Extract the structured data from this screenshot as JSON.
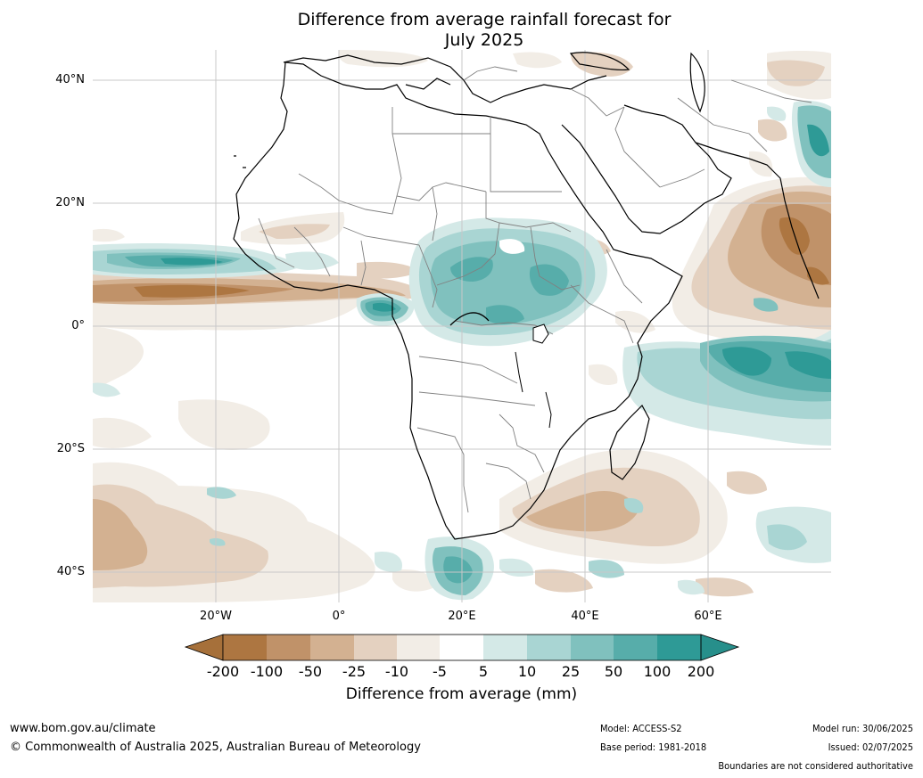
{
  "title_line1": "Difference from average rainfall forecast for",
  "title_line2": "July 2025",
  "lat_labels": [
    "40°N",
    "20°N",
    "0°",
    "20°S",
    "40°S"
  ],
  "lon_labels": [
    "20°W",
    "0°",
    "20°E",
    "40°E",
    "60°E"
  ],
  "colorbar": {
    "title": "Difference from average (mm)",
    "ticks": [
      "-200",
      "-100",
      "-50",
      "-25",
      "-10",
      "-5",
      "5",
      "10",
      "25",
      "50",
      "100",
      "200"
    ],
    "colors": [
      "#a6703a",
      "#ad7641",
      "#c09269",
      "#d3b191",
      "#e4d1c0",
      "#f2ede6",
      "#ffffff",
      "#d4e9e7",
      "#a9d5d3",
      "#80c1be",
      "#57adaa",
      "#2e9a96",
      "#278f8b"
    ]
  },
  "footer": {
    "website": "www.bom.gov.au/climate",
    "copyright": "© Commonwealth of Australia 2025, Australian Bureau of Meteorology",
    "model": "Model: ACCESS-S2",
    "base_period": "Base period: 1981-2018",
    "model_run": "Model run: 30/06/2025",
    "issued": "Issued: 02/07/2025",
    "disclaimer": "Boundaries are not considered authoritative"
  }
}
